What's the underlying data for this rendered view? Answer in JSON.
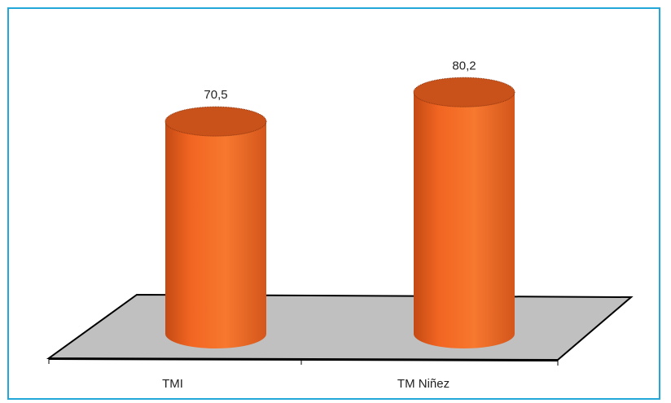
{
  "chart_data": {
    "type": "bar",
    "style": "3d-cylinder",
    "categories": [
      "TMI",
      "TM Niñez"
    ],
    "values": [
      70.5,
      80.2
    ],
    "value_labels": [
      "70,5",
      "80,2"
    ],
    "title": "",
    "xlabel": "",
    "ylabel": "",
    "ylim": [
      0,
      100
    ],
    "grid": false,
    "legend": "none"
  },
  "colors": {
    "frame": "#22a7d8",
    "floor": "#c0c0c0",
    "bar_body": "#f26522",
    "bar_top": "#c9511a",
    "bar_shade": "#d9541a"
  }
}
